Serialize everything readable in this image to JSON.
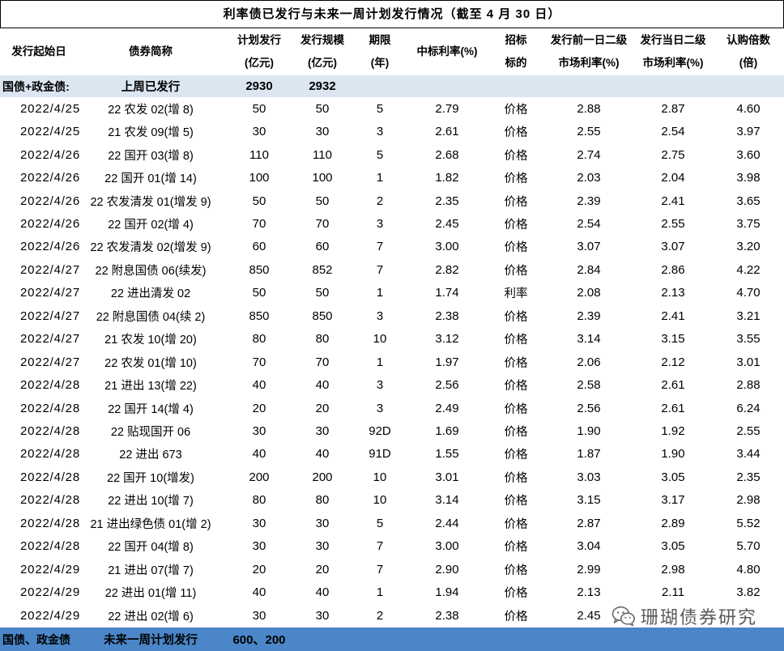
{
  "title": "利率债已发行与未来一周计划发行情况（截至 4 月 30 日）",
  "header": {
    "date": [
      "发行起始日"
    ],
    "name": [
      "债券简称"
    ],
    "planned": [
      "计划发行",
      "(亿元)"
    ],
    "issued": [
      "发行规模",
      "(亿元)"
    ],
    "term": [
      "期限",
      "(年)"
    ],
    "rate": [
      "中标利率(%)"
    ],
    "target": [
      "招标",
      "标的"
    ],
    "prev_rate": [
      "发行前一日二级",
      "市场利率(%)"
    ],
    "day_rate": [
      "发行当日二级",
      "市场利率(%)"
    ],
    "multiple": [
      "认购倍数",
      "(倍)"
    ]
  },
  "section": {
    "label": "国债+政金债:",
    "desc": "上周已发行",
    "planned": "2930",
    "issued": "2932"
  },
  "rows": [
    {
      "date": "2022/4/25",
      "name": "22 农发 02(增 8)",
      "planned": "50",
      "issued": "50",
      "term": "5",
      "rate": "2.79",
      "target": "价格",
      "prev_rate": "2.88",
      "day_rate": "2.87",
      "multiple": "4.60"
    },
    {
      "date": "2022/4/25",
      "name": "21 农发 09(增 5)",
      "planned": "30",
      "issued": "30",
      "term": "3",
      "rate": "2.61",
      "target": "价格",
      "prev_rate": "2.55",
      "day_rate": "2.54",
      "multiple": "3.97"
    },
    {
      "date": "2022/4/26",
      "name": "22 国开 03(增 8)",
      "planned": "110",
      "issued": "110",
      "term": "5",
      "rate": "2.68",
      "target": "价格",
      "prev_rate": "2.74",
      "day_rate": "2.75",
      "multiple": "3.60"
    },
    {
      "date": "2022/4/26",
      "name": "22 国开 01(增 14)",
      "planned": "100",
      "issued": "100",
      "term": "1",
      "rate": "1.82",
      "target": "价格",
      "prev_rate": "2.03",
      "day_rate": "2.04",
      "multiple": "3.98"
    },
    {
      "date": "2022/4/26",
      "name": "22 农发清发 01(增发 9)",
      "planned": "50",
      "issued": "50",
      "term": "2",
      "rate": "2.35",
      "target": "价格",
      "prev_rate": "2.39",
      "day_rate": "2.41",
      "multiple": "3.65"
    },
    {
      "date": "2022/4/26",
      "name": "22 国开 02(增 4)",
      "planned": "70",
      "issued": "70",
      "term": "3",
      "rate": "2.45",
      "target": "价格",
      "prev_rate": "2.54",
      "day_rate": "2.55",
      "multiple": "3.75"
    },
    {
      "date": "2022/4/26",
      "name": "22 农发清发 02(增发 9)",
      "planned": "60",
      "issued": "60",
      "term": "7",
      "rate": "3.00",
      "target": "价格",
      "prev_rate": "3.07",
      "day_rate": "3.07",
      "multiple": "3.20"
    },
    {
      "date": "2022/4/27",
      "name": "22 附息国债 06(续发)",
      "planned": "850",
      "issued": "852",
      "term": "7",
      "rate": "2.82",
      "target": "价格",
      "prev_rate": "2.84",
      "day_rate": "2.86",
      "multiple": "4.22"
    },
    {
      "date": "2022/4/27",
      "name": "22 进出清发 02",
      "planned": "50",
      "issued": "50",
      "term": "1",
      "rate": "1.74",
      "target": "利率",
      "prev_rate": "2.08",
      "day_rate": "2.13",
      "multiple": "4.70"
    },
    {
      "date": "2022/4/27",
      "name": "22 附息国债 04(续 2)",
      "planned": "850",
      "issued": "850",
      "term": "3",
      "rate": "2.38",
      "target": "价格",
      "prev_rate": "2.39",
      "day_rate": "2.41",
      "multiple": "3.21"
    },
    {
      "date": "2022/4/27",
      "name": "21 农发 10(增 20)",
      "planned": "80",
      "issued": "80",
      "term": "10",
      "rate": "3.12",
      "target": "价格",
      "prev_rate": "3.14",
      "day_rate": "3.15",
      "multiple": "3.55"
    },
    {
      "date": "2022/4/27",
      "name": "22 农发 01(增 10)",
      "planned": "70",
      "issued": "70",
      "term": "1",
      "rate": "1.97",
      "target": "价格",
      "prev_rate": "2.06",
      "day_rate": "2.12",
      "multiple": "3.01"
    },
    {
      "date": "2022/4/28",
      "name": "21 进出 13(增 22)",
      "planned": "40",
      "issued": "40",
      "term": "3",
      "rate": "2.56",
      "target": "价格",
      "prev_rate": "2.58",
      "day_rate": "2.61",
      "multiple": "2.88"
    },
    {
      "date": "2022/4/28",
      "name": "22 国开 14(增 4)",
      "planned": "20",
      "issued": "20",
      "term": "3",
      "rate": "2.49",
      "target": "价格",
      "prev_rate": "2.56",
      "day_rate": "2.61",
      "multiple": "6.24"
    },
    {
      "date": "2022/4/28",
      "name": "22 贴现国开 06",
      "planned": "30",
      "issued": "30",
      "term": "92D",
      "rate": "1.69",
      "target": "价格",
      "prev_rate": "1.90",
      "day_rate": "1.92",
      "multiple": "2.55"
    },
    {
      "date": "2022/4/28",
      "name": "22 进出 673",
      "planned": "40",
      "issued": "40",
      "term": "91D",
      "rate": "1.55",
      "target": "价格",
      "prev_rate": "1.87",
      "day_rate": "1.90",
      "multiple": "3.44"
    },
    {
      "date": "2022/4/28",
      "name": "22 国开 10(增发)",
      "planned": "200",
      "issued": "200",
      "term": "10",
      "rate": "3.01",
      "target": "价格",
      "prev_rate": "3.03",
      "day_rate": "3.05",
      "multiple": "2.35"
    },
    {
      "date": "2022/4/28",
      "name": "22 进出 10(增 7)",
      "planned": "80",
      "issued": "80",
      "term": "10",
      "rate": "3.14",
      "target": "价格",
      "prev_rate": "3.15",
      "day_rate": "3.17",
      "multiple": "2.98"
    },
    {
      "date": "2022/4/28",
      "name": "21 进出绿色债 01(增 2)",
      "planned": "30",
      "issued": "30",
      "term": "5",
      "rate": "2.44",
      "target": "价格",
      "prev_rate": "2.87",
      "day_rate": "2.89",
      "multiple": "5.52"
    },
    {
      "date": "2022/4/28",
      "name": "22 国开 04(增 8)",
      "planned": "30",
      "issued": "30",
      "term": "7",
      "rate": "3.00",
      "target": "价格",
      "prev_rate": "3.04",
      "day_rate": "3.05",
      "multiple": "5.70"
    },
    {
      "date": "2022/4/29",
      "name": "21 进出 07(增 7)",
      "planned": "20",
      "issued": "20",
      "term": "7",
      "rate": "2.90",
      "target": "价格",
      "prev_rate": "2.99",
      "day_rate": "2.98",
      "multiple": "4.80"
    },
    {
      "date": "2022/4/29",
      "name": "22 进出 01(增 11)",
      "planned": "40",
      "issued": "40",
      "term": "1",
      "rate": "1.94",
      "target": "价格",
      "prev_rate": "2.13",
      "day_rate": "2.11",
      "multiple": "3.82"
    },
    {
      "date": "2022/4/29",
      "name": "22 进出 02(增 6)",
      "planned": "30",
      "issued": "30",
      "term": "2",
      "rate": "2.38",
      "target": "价格",
      "prev_rate": "2.45"
    }
  ],
  "footer": {
    "label": "国债、政金债",
    "desc": "未来一周计划发行",
    "planned": "600、200"
  },
  "watermark": {
    "text": "珊瑚债券研究",
    "icon": "wechat-icon"
  },
  "colors": {
    "section_bg": "#dce6f1",
    "footer_bg": "#4a86c8",
    "text": "#000000",
    "watermark": "#5a5a5a"
  }
}
